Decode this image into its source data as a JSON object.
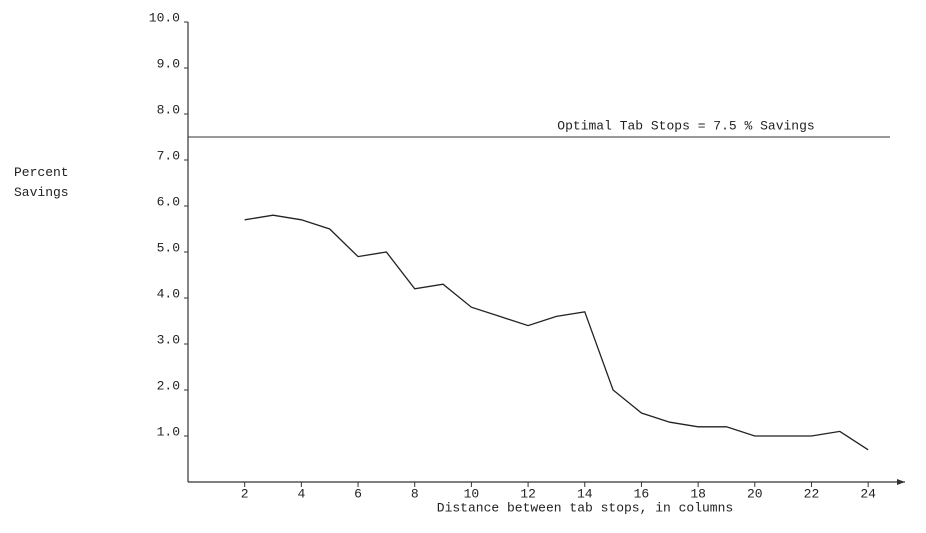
{
  "chart_data": {
    "type": "line",
    "y_label": "Percent Savings",
    "x_label": "Distance between tab stops, in columns",
    "x": [
      2,
      3,
      4,
      5,
      6,
      7,
      8,
      9,
      10,
      11,
      12,
      13,
      14,
      15,
      16,
      17,
      18,
      19,
      20,
      21,
      22,
      23,
      24
    ],
    "values": [
      5.7,
      5.8,
      5.7,
      5.5,
      4.9,
      5.0,
      4.2,
      4.3,
      3.8,
      3.6,
      3.4,
      3.6,
      3.7,
      2.0,
      1.5,
      1.3,
      1.2,
      1.2,
      1.0,
      1.0,
      1.0,
      1.1,
      0.7
    ],
    "color": "#222222",
    "reference_line": {
      "value": 7.5,
      "label": "Optimal Tab Stops = 7.5 % Savings"
    },
    "xlim": [
      0,
      25.3
    ],
    "xticks": [
      2,
      4,
      6,
      8,
      10,
      12,
      14,
      16,
      18,
      20,
      22,
      24
    ],
    "ylim": [
      0,
      10
    ],
    "yticks": [
      {
        "value": 1,
        "label": "1.0"
      },
      {
        "value": 2,
        "label": "2.0"
      },
      {
        "value": 3,
        "label": "3.0"
      },
      {
        "value": 4,
        "label": "4.0"
      },
      {
        "value": 5,
        "label": "5.0"
      },
      {
        "value": 6,
        "label": "6.0"
      },
      {
        "value": 7,
        "label": "7.0"
      },
      {
        "value": 8,
        "label": "8.0"
      },
      {
        "value": 9,
        "label": "9.0"
      },
      {
        "value": 10,
        "label": "10.0"
      }
    ],
    "grid": false
  }
}
